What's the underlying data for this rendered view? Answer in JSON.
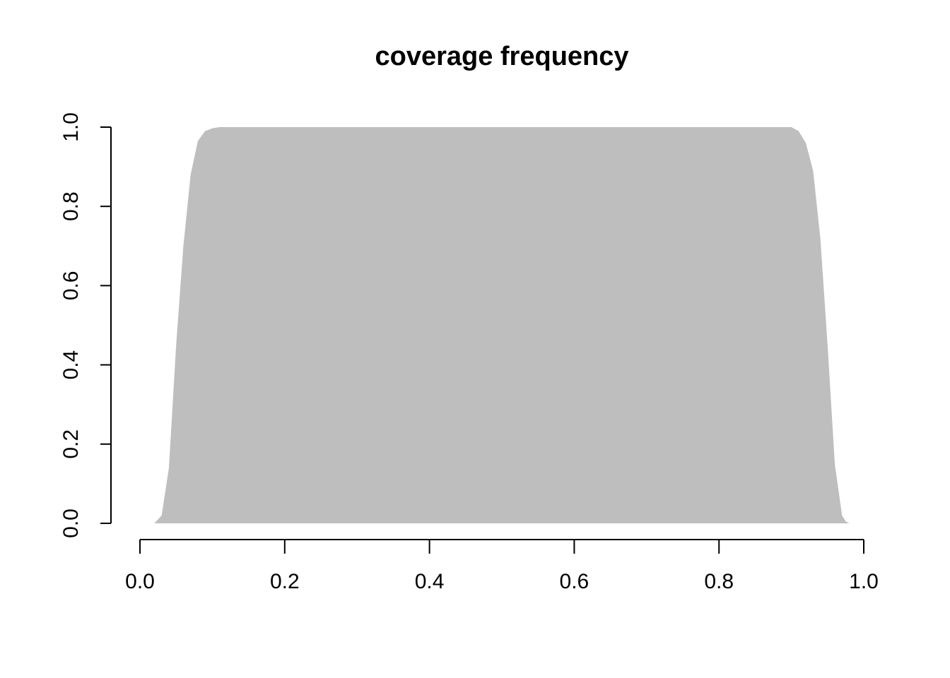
{
  "chart_data": {
    "type": "area",
    "title": "coverage frequency",
    "xlabel": "",
    "ylabel": "",
    "xlim": [
      0,
      1
    ],
    "ylim": [
      0,
      1
    ],
    "x_ticks": [
      "0.0",
      "0.2",
      "0.4",
      "0.6",
      "0.8",
      "1.0"
    ],
    "y_ticks": [
      "0.0",
      "0.2",
      "0.4",
      "0.6",
      "0.8",
      "1.0"
    ],
    "grid": false,
    "fill_color": "#bebebe",
    "x": [
      0.014,
      0.02,
      0.025,
      0.03,
      0.04,
      0.05,
      0.06,
      0.07,
      0.08,
      0.09,
      0.1,
      0.11,
      0.5,
      0.9,
      0.91,
      0.92,
      0.93,
      0.94,
      0.95,
      0.96,
      0.97,
      0.975,
      0.98
    ],
    "y": [
      0.0,
      0.0,
      0.01,
      0.02,
      0.14,
      0.45,
      0.7,
      0.88,
      0.965,
      0.99,
      0.997,
      1.0,
      1.0,
      1.0,
      0.99,
      0.96,
      0.89,
      0.72,
      0.45,
      0.15,
      0.02,
      0.005,
      0.0
    ]
  }
}
